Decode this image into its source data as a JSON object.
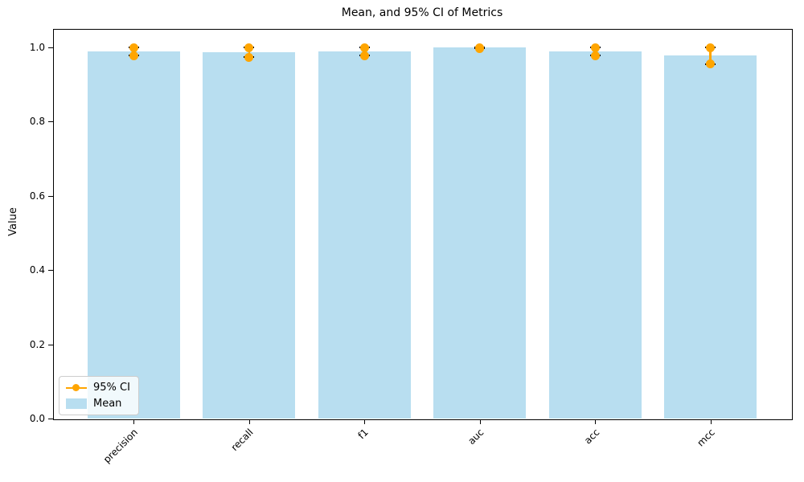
{
  "figure": {
    "title": "Mean, and 95% CI of Metrics",
    "ylabel": "Value"
  },
  "legend": {
    "entries": [
      "95% CI",
      "Mean"
    ]
  },
  "chart_data": {
    "type": "bar",
    "title": "Mean, and 95% CI of Metrics",
    "xlabel": "",
    "ylabel": "Value",
    "categories": [
      "precision",
      "recall",
      "f1",
      "auc",
      "acc",
      "mcc"
    ],
    "series": [
      {
        "name": "Mean",
        "type": "bar",
        "values": [
          0.99,
          0.988,
          0.989,
          1.0,
          0.989,
          0.979
        ]
      },
      {
        "name": "95% CI",
        "type": "errorbar",
        "low": [
          0.978,
          0.974,
          0.978,
          0.997,
          0.978,
          0.955
        ],
        "high": [
          1.0,
          1.0,
          1.0,
          1.0,
          1.0,
          1.0
        ]
      }
    ],
    "yticks": [
      0.0,
      0.2,
      0.4,
      0.6,
      0.8,
      1.0
    ],
    "ylim": [
      0,
      1.05
    ],
    "grid": false,
    "legend_position": "lower left",
    "colors": {
      "bar": "#B8DEF0",
      "ci_line": "#FFA500",
      "ci_dot": "#FFA500",
      "cap": "#000000",
      "axis": "#000000"
    }
  }
}
